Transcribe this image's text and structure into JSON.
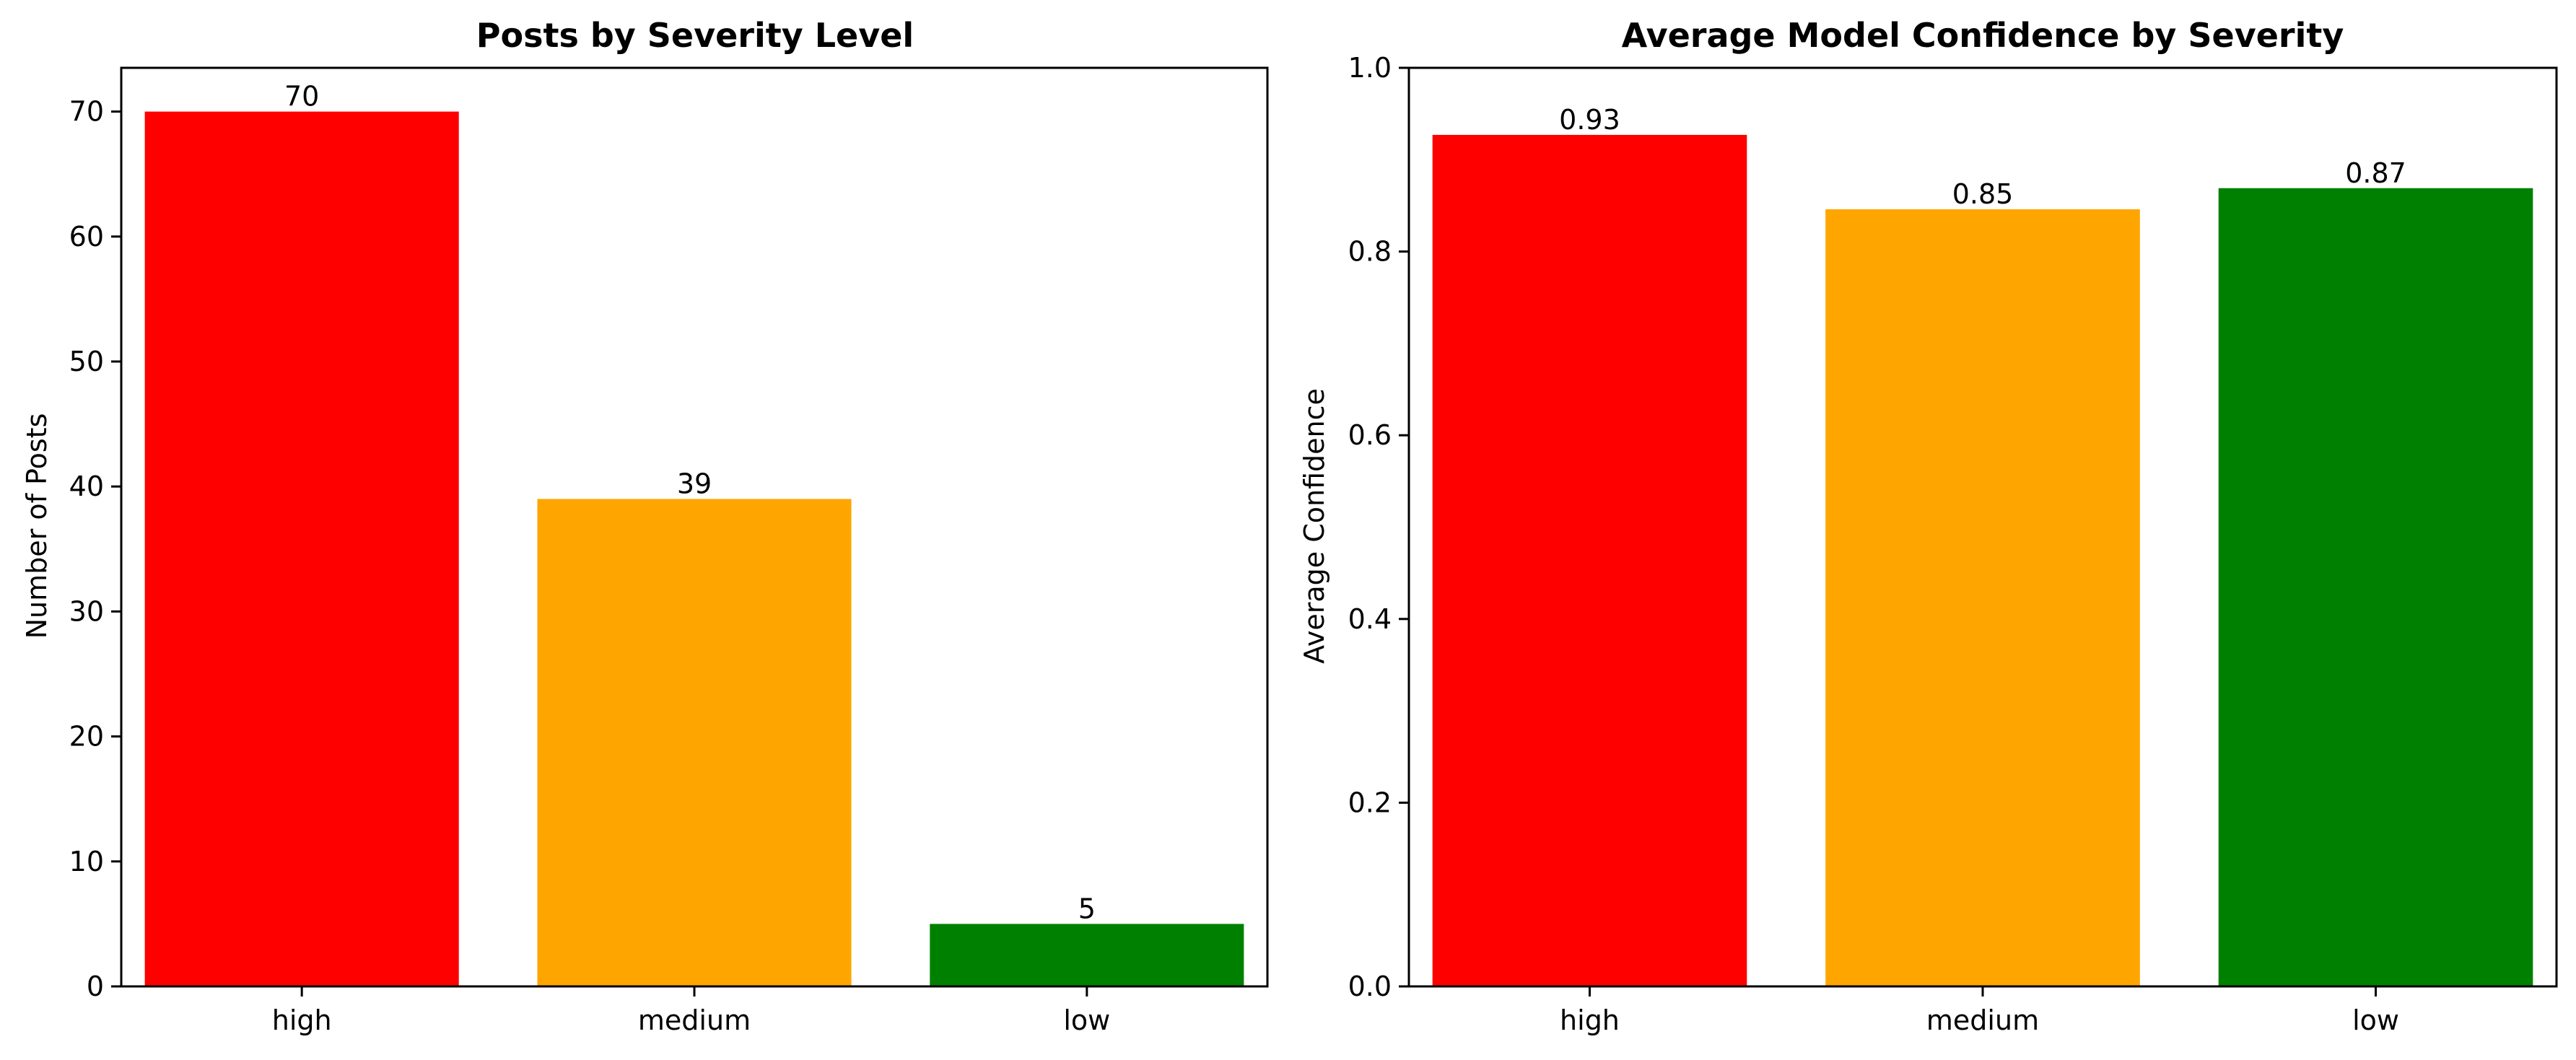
{
  "chart_data": [
    {
      "type": "bar",
      "title": "Posts by Severity Level",
      "xlabel": "",
      "ylabel": "Number of Posts",
      "categories": [
        "high",
        "medium",
        "low"
      ],
      "values": [
        70,
        39,
        5
      ],
      "value_labels": [
        "70",
        "39",
        "5"
      ],
      "colors": [
        "#ff0000",
        "#ffa500",
        "#008000"
      ],
      "ylim": [
        0,
        73.5
      ],
      "yticks": [
        0,
        10,
        20,
        30,
        40,
        50,
        60,
        70
      ],
      "ytick_labels": [
        "0",
        "10",
        "20",
        "30",
        "40",
        "50",
        "60",
        "70"
      ],
      "grid": false
    },
    {
      "type": "bar",
      "title": "Average Model Confidence by Severity",
      "xlabel": "",
      "ylabel": "Average Confidence",
      "categories": [
        "high",
        "medium",
        "low"
      ],
      "values": [
        0.927,
        0.846,
        0.869
      ],
      "value_labels": [
        "0.93",
        "0.85",
        "0.87"
      ],
      "colors": [
        "#ff0000",
        "#ffa500",
        "#008000"
      ],
      "ylim": [
        0,
        1.0
      ],
      "yticks": [
        0,
        0.2,
        0.4,
        0.6,
        0.8,
        1.0
      ],
      "ytick_labels": [
        "0.0",
        "0.2",
        "0.4",
        "0.6",
        "0.8",
        "1.0"
      ],
      "grid": false
    }
  ]
}
